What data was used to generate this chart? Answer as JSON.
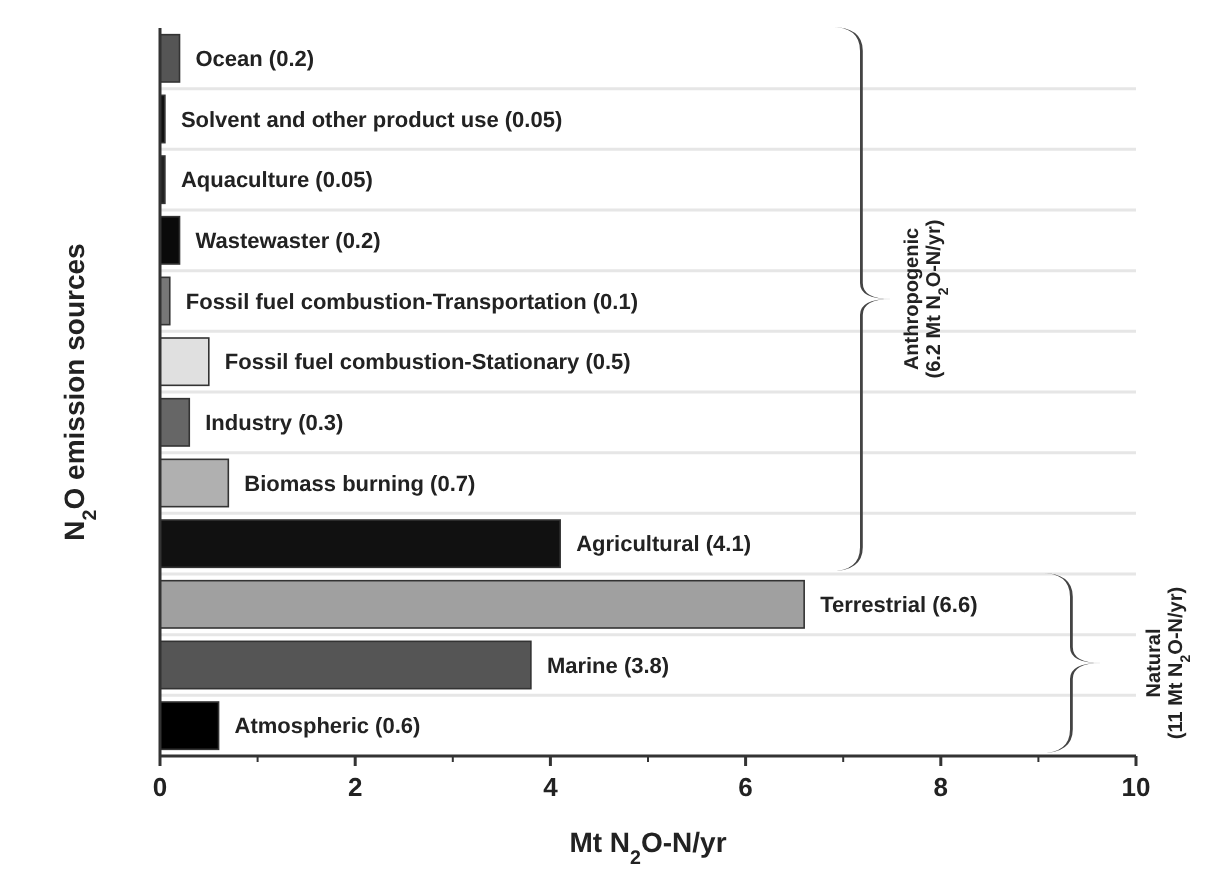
{
  "chart_data": {
    "type": "bar",
    "orientation": "horizontal",
    "xlabel": "Mt N$_{2}$O-N/yr",
    "ylabel": "N$_{2}$O emission sources",
    "categories": [
      "Ocean (0.2)",
      "Solvent and other product use (0.05)",
      "Aquaculture (0.05)",
      "Wastewaster (0.2)",
      "Fossil fuel combustion-Transportation (0.1)",
      "Fossil fuel combustion-Stationary (0.5)",
      "Industry (0.3)",
      "Biomass burning (0.7)",
      "Agricultural (4.1)",
      "Terrestrial (6.6)",
      "Marine (3.8)",
      "Atmospheric (0.6)"
    ],
    "values": [
      0.2,
      0.05,
      0.05,
      0.2,
      0.1,
      0.5,
      0.3,
      0.7,
      4.1,
      6.6,
      3.8,
      0.6
    ],
    "colors": [
      "#555555",
      "#111111",
      "#222222",
      "#0a0a0a",
      "#777777",
      "#e0e0e0",
      "#666666",
      "#b0b0b0",
      "#111111",
      "#a0a0a0",
      "#555555",
      "#000000"
    ],
    "xlim": [
      0,
      10
    ],
    "xticks": [
      0,
      2,
      4,
      6,
      8,
      10
    ],
    "grid": "y",
    "annotations": [
      "Anthropogenic\n(6.2 Mt N$_{2}$O-N/yr)",
      "Natural\n(11 Mt N$_{2}$O-N/yr)"
    ]
  }
}
